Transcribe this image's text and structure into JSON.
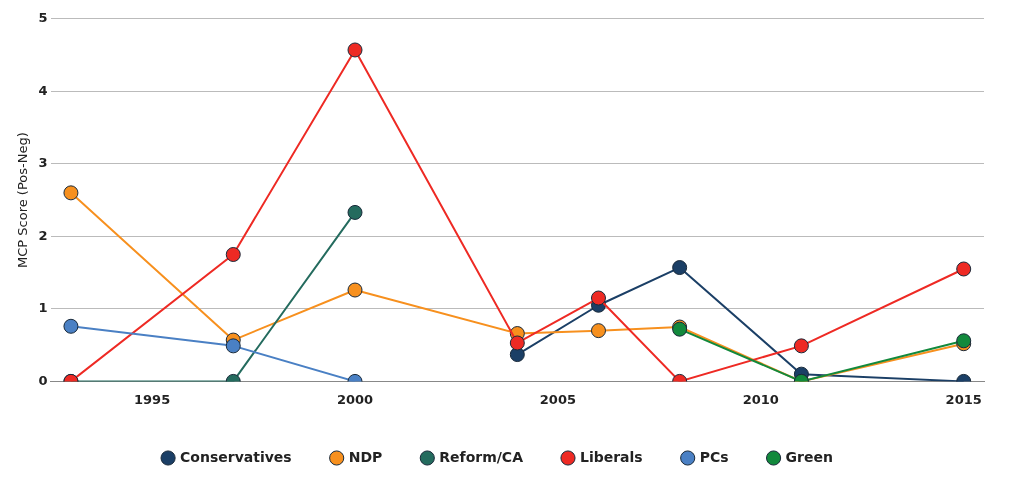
{
  "chart_data": {
    "type": "line",
    "ylabel": "MCP Score (Pos-Neg)",
    "x": [
      1993,
      1997,
      2000,
      2004,
      2006,
      2008,
      2011,
      2015
    ],
    "xlim": [
      1992.5,
      2015.5
    ],
    "xticks": [
      1995,
      2000,
      2005,
      2010,
      2015
    ],
    "ylim": [
      0,
      5
    ],
    "yticks": [
      0,
      1,
      2,
      3,
      4,
      5
    ],
    "grid": "y",
    "legend": "bottom",
    "marker": "circle",
    "line_style": "solid",
    "series": [
      {
        "name": "Conservatives",
        "color": "#1b3f66",
        "values": [
          null,
          null,
          null,
          0.37,
          1.05,
          1.57,
          0.1,
          0
        ]
      },
      {
        "name": "NDP",
        "color": "#f7901e",
        "values": [
          2.6,
          0.57,
          1.26,
          0.66,
          0.7,
          0.75,
          0,
          0.52
        ]
      },
      {
        "name": "Reform/CA",
        "color": "#246b5e",
        "values": [
          0,
          0,
          2.33,
          null,
          null,
          null,
          null,
          null
        ]
      },
      {
        "name": "Liberals",
        "color": "#ee2a24",
        "values": [
          0,
          1.75,
          4.57,
          0.53,
          1.15,
          0,
          0.49,
          1.55
        ]
      },
      {
        "name": "PCs",
        "color": "#4a80c4",
        "values": [
          0.76,
          0.49,
          0,
          null,
          null,
          null,
          null,
          null
        ]
      },
      {
        "name": "Green",
        "color": "#12893c",
        "values": [
          null,
          null,
          null,
          null,
          null,
          0.72,
          0,
          0.56
        ]
      }
    ]
  }
}
